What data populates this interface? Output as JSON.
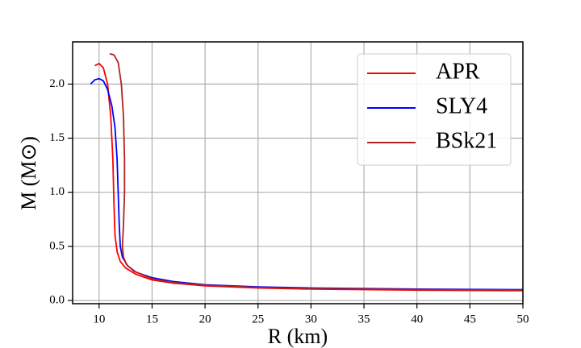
{
  "chart_data": {
    "type": "line",
    "xlabel": "R (km)",
    "ylabel": "M (M⊙)",
    "xlim": [
      7.5,
      50
    ],
    "ylim": [
      -0.03,
      2.39
    ],
    "xticks": [
      10,
      15,
      20,
      25,
      30,
      35,
      40,
      45,
      50
    ],
    "yticks": [
      {
        "value": 0,
        "label": "0.0"
      },
      0.5,
      {
        "value": 1,
        "label": "1.0"
      },
      1.5,
      {
        "value": 2,
        "label": "2.0"
      }
    ],
    "grid": true,
    "legend": "upper right",
    "series": [
      {
        "name": "APR",
        "color": "#ff0000",
        "x": [
          9.6,
          10.0,
          10.4,
          10.8,
          11.1,
          11.3,
          11.4,
          11.5,
          11.7,
          12,
          12.5,
          13.5,
          15,
          17,
          20,
          25,
          30,
          40,
          50
        ],
        "values": [
          2.17,
          2.19,
          2.15,
          2.0,
          1.7,
          1.3,
          0.9,
          0.6,
          0.45,
          0.36,
          0.3,
          0.24,
          0.19,
          0.16,
          0.135,
          0.115,
          0.105,
          0.095,
          0.09
        ]
      },
      {
        "name": "SLY4",
        "color": "#0000ff",
        "x": [
          9.2,
          9.6,
          10.0,
          10.4,
          10.8,
          11.2,
          11.5,
          11.7,
          11.8,
          11.9,
          12.0,
          12.2,
          12.7,
          13.5,
          15,
          17,
          20,
          25,
          30,
          40,
          50
        ],
        "values": [
          2.0,
          2.04,
          2.05,
          2.03,
          1.95,
          1.8,
          1.6,
          1.3,
          1.0,
          0.7,
          0.5,
          0.4,
          0.32,
          0.26,
          0.21,
          0.175,
          0.145,
          0.125,
          0.115,
          0.105,
          0.1
        ]
      },
      {
        "name": "BSk21",
        "color": "#b22222",
        "x": [
          11.0,
          11.4,
          11.8,
          12.1,
          12.3,
          12.4,
          12.4,
          12.3,
          12.2,
          12.3,
          12.6,
          13.3,
          15,
          17,
          20,
          25,
          30,
          40,
          50
        ],
        "values": [
          2.28,
          2.27,
          2.2,
          2.0,
          1.7,
          1.3,
          1.0,
          0.7,
          0.5,
          0.4,
          0.33,
          0.27,
          0.2,
          0.165,
          0.14,
          0.12,
          0.11,
          0.1,
          0.095
        ]
      }
    ]
  }
}
